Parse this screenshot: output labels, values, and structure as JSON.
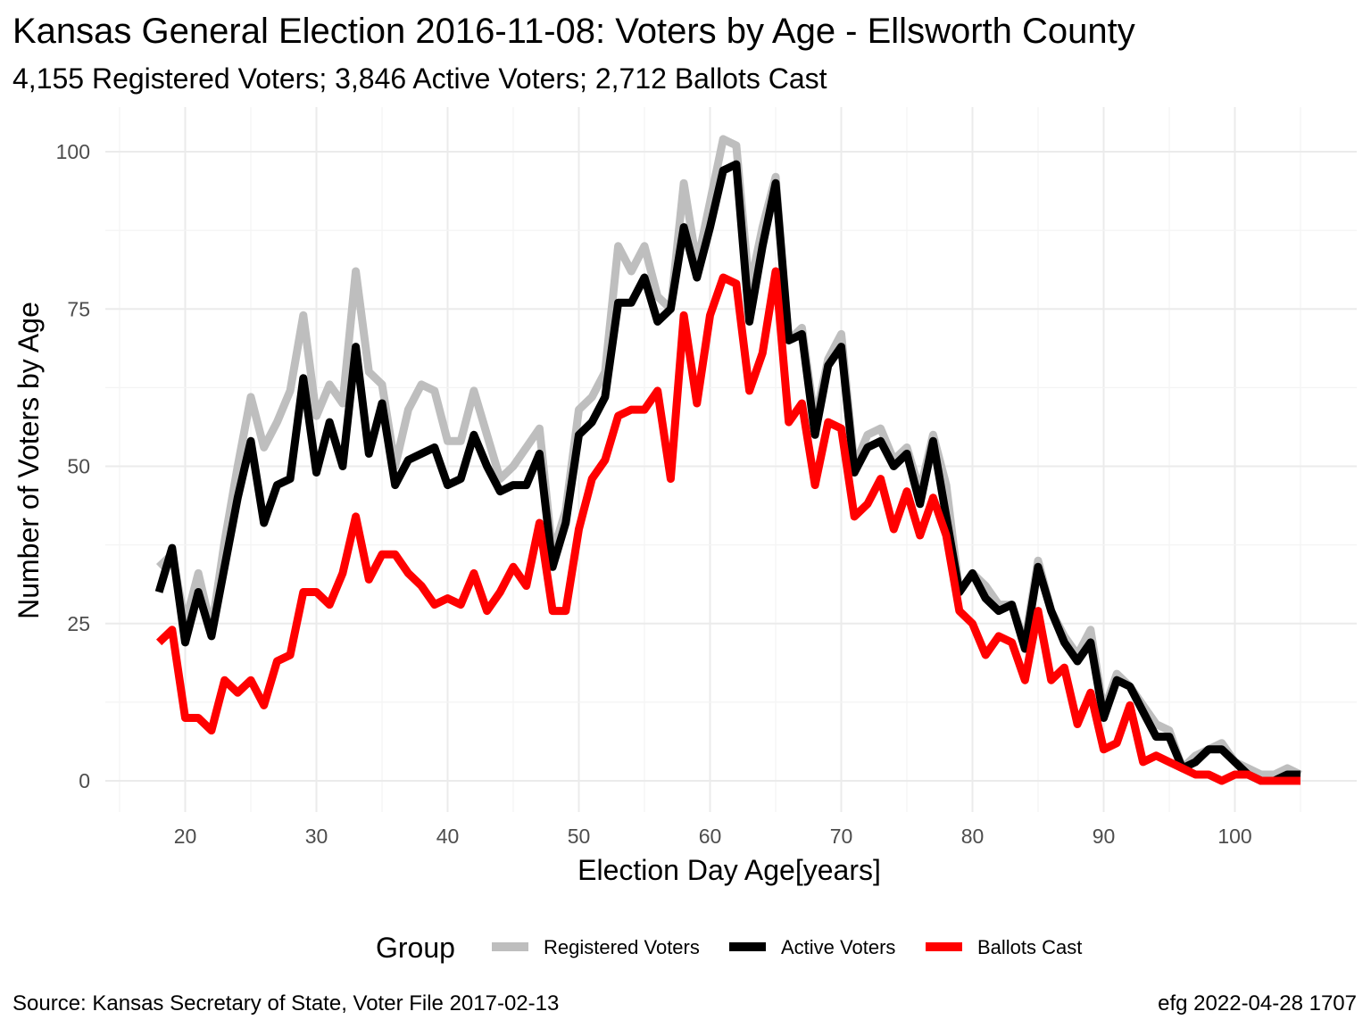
{
  "chart_data": {
    "type": "line",
    "title": "Kansas General Election 2016-11-08:  Voters by Age - Ellsworth County",
    "subtitle": "4,155 Registered Voters; 3,846 Active Voters; 2,712 Ballots Cast",
    "xlabel": "Election Day Age[years]",
    "ylabel": "Number of Voters by Age",
    "xlim": [
      15,
      108
    ],
    "ylim": [
      -4,
      107
    ],
    "x_ticks": [
      20,
      30,
      40,
      50,
      60,
      70,
      80,
      90,
      100
    ],
    "y_ticks": [
      0,
      25,
      50,
      75,
      100
    ],
    "grid": true,
    "legend_title": "Group",
    "legend_position": "bottom",
    "x": [
      18,
      19,
      20,
      21,
      22,
      23,
      24,
      25,
      26,
      27,
      28,
      29,
      30,
      31,
      32,
      33,
      34,
      35,
      36,
      37,
      38,
      39,
      40,
      41,
      42,
      43,
      44,
      45,
      46,
      47,
      48,
      49,
      50,
      51,
      52,
      53,
      54,
      55,
      56,
      57,
      58,
      59,
      60,
      61,
      62,
      63,
      64,
      65,
      66,
      67,
      68,
      69,
      70,
      71,
      72,
      73,
      74,
      75,
      76,
      77,
      78,
      79,
      80,
      81,
      82,
      83,
      84,
      85,
      86,
      87,
      88,
      89,
      90,
      91,
      92,
      93,
      94,
      95,
      96,
      97,
      98,
      99,
      100,
      101,
      102,
      103,
      104,
      105
    ],
    "series": [
      {
        "name": "Registered Voters",
        "color": "#bebebe",
        "values": [
          34,
          36,
          25,
          33,
          24,
          38,
          50,
          61,
          53,
          57,
          62,
          74,
          58,
          63,
          60,
          81,
          65,
          63,
          50,
          59,
          63,
          62,
          54,
          54,
          62,
          55,
          48,
          50,
          53,
          56,
          36,
          43,
          59,
          61,
          65,
          85,
          81,
          85,
          77,
          75,
          95,
          82,
          92,
          102,
          101,
          78,
          88,
          96,
          70,
          72,
          57,
          67,
          71,
          50,
          55,
          56,
          51,
          53,
          46,
          55,
          47,
          30,
          33,
          31,
          28,
          28,
          22,
          35,
          27,
          23,
          20,
          24,
          11,
          17,
          15,
          12,
          9,
          8,
          2,
          4,
          5,
          6,
          3,
          2,
          1,
          1,
          2,
          1
        ]
      },
      {
        "name": "Active Voters",
        "color": "#000000",
        "values": [
          30,
          37,
          22,
          30,
          23,
          34,
          45,
          54,
          41,
          47,
          48,
          64,
          49,
          57,
          50,
          69,
          52,
          60,
          47,
          51,
          52,
          53,
          47,
          48,
          55,
          50,
          46,
          47,
          47,
          52,
          34,
          41,
          55,
          57,
          61,
          76,
          76,
          80,
          73,
          75,
          88,
          80,
          88,
          97,
          98,
          73,
          85,
          95,
          70,
          71,
          55,
          66,
          69,
          49,
          53,
          54,
          50,
          52,
          44,
          54,
          42,
          30,
          33,
          29,
          27,
          28,
          21,
          34,
          27,
          22,
          19,
          22,
          10,
          16,
          15,
          11,
          7,
          7,
          2,
          3,
          5,
          5,
          3,
          1,
          0,
          0,
          1,
          1
        ]
      },
      {
        "name": "Ballots Cast",
        "color": "#ff0000",
        "values": [
          22,
          24,
          10,
          10,
          8,
          16,
          14,
          16,
          12,
          19,
          20,
          30,
          30,
          28,
          33,
          42,
          32,
          36,
          36,
          33,
          31,
          28,
          29,
          28,
          33,
          27,
          30,
          34,
          31,
          41,
          27,
          27,
          40,
          48,
          51,
          58,
          59,
          59,
          62,
          48,
          74,
          60,
          74,
          80,
          79,
          62,
          68,
          81,
          57,
          60,
          47,
          57,
          56,
          42,
          44,
          48,
          40,
          46,
          39,
          45,
          39,
          27,
          25,
          20,
          23,
          22,
          16,
          27,
          16,
          18,
          9,
          14,
          5,
          6,
          12,
          3,
          4,
          3,
          2,
          1,
          1,
          0,
          1,
          1,
          0,
          0,
          0,
          0
        ]
      }
    ],
    "caption_left": "Source:  Kansas Secretary of State, Voter File  2017-02-13",
    "caption_right": "efg 2022-04-28 1707"
  }
}
